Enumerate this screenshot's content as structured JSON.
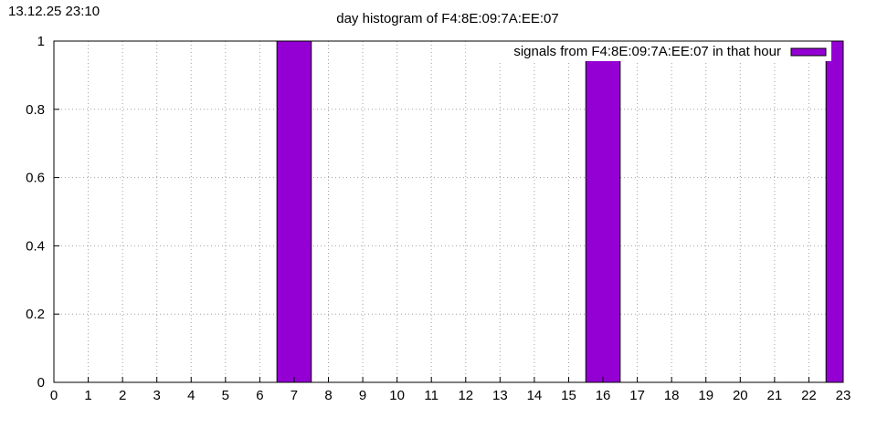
{
  "timestamp": "13.12.25 23:10",
  "chart_data": {
    "type": "bar",
    "title": "day histogram of F4:8E:09:7A:EE:07",
    "xlabel": "",
    "ylabel": "",
    "xlim": [
      0,
      23
    ],
    "ylim": [
      0,
      1
    ],
    "x_ticks": [
      "0",
      "1",
      "2",
      "3",
      "4",
      "5",
      "6",
      "7",
      "8",
      "9",
      "10",
      "11",
      "12",
      "13",
      "14",
      "15",
      "16",
      "17",
      "18",
      "19",
      "20",
      "21",
      "22",
      "23"
    ],
    "y_ticks": [
      "0",
      "0.2",
      "0.4",
      "0.6",
      "0.8",
      "1"
    ],
    "grid": true,
    "legend_position": "top-right",
    "categories": [
      0,
      1,
      2,
      3,
      4,
      5,
      6,
      7,
      8,
      9,
      10,
      11,
      12,
      13,
      14,
      15,
      16,
      17,
      18,
      19,
      20,
      21,
      22,
      23
    ],
    "series": [
      {
        "name": "signals from F4:8E:09:7A:EE:07 in that hour",
        "color": "#9400d3",
        "values": [
          0,
          0,
          0,
          0,
          0,
          0,
          0,
          1,
          0,
          0,
          0,
          0,
          0,
          0,
          0,
          0,
          1,
          0,
          0,
          0,
          0,
          0,
          0,
          1
        ]
      }
    ]
  }
}
